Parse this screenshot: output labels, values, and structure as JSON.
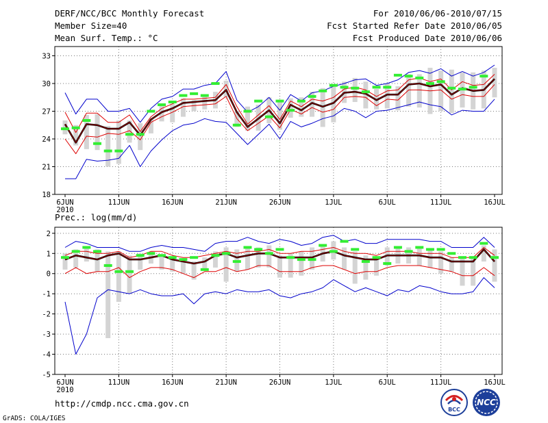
{
  "header": {
    "title": "DERF/NCC/BCC Monthly Forecast",
    "member_size": "Member Size=40",
    "variable": "Mean Surf. Temp.: °C",
    "period": "For 2010/06/06-2010/07/15",
    "started": "Fcst Started Refer Date 2010/06/05",
    "produced": "Fcst Produced Date 2010/06/06"
  },
  "footer": {
    "url": "http://cmdp.ncc.cma.gov.cn",
    "credit": "GrADS: COLA/IGES",
    "logo_bcc": "BCC",
    "logo_ncc": "NCC"
  },
  "colors": {
    "envelope": "#0000cc",
    "spread": "#dd0000",
    "mean": "#000000",
    "mean_inner": "#aa0000",
    "box": "#d4d4d4",
    "obs": "#33ee33"
  },
  "chart_data": [
    {
      "type": "line",
      "title": "Mean Surf. Temp.: °C",
      "ylim": [
        18,
        34
      ],
      "yticks": [
        18,
        21,
        24,
        27,
        30,
        33
      ],
      "xlim": [
        0,
        40
      ],
      "xticks": [
        {
          "x": 0,
          "label": "6JUN",
          "label2": "2010"
        },
        {
          "x": 5,
          "label": "11JUN"
        },
        {
          "x": 10,
          "label": "16JUN"
        },
        {
          "x": 15,
          "label": "21JUN"
        },
        {
          "x": 20,
          "label": "26JUN"
        },
        {
          "x": 25,
          "label": "1JUL"
        },
        {
          "x": 30,
          "label": "6JUL"
        },
        {
          "x": 35,
          "label": "11JUL"
        },
        {
          "x": 40,
          "label": "16JUL"
        }
      ],
      "grid": true,
      "series": [
        {
          "name": "max",
          "values": [
            29.0,
            26.7,
            28.3,
            28.3,
            27.0,
            27.0,
            27.3,
            25.8,
            27.3,
            28.3,
            28.6,
            29.4,
            29.4,
            29.8,
            30.0,
            31.3,
            28.2,
            26.9,
            27.5,
            28.5,
            27.1,
            28.8,
            28.1,
            29.0,
            29.2,
            29.7,
            30.0,
            30.4,
            30.5,
            29.8,
            30.0,
            30.4,
            31.2,
            31.4,
            31.1,
            31.6,
            30.8,
            31.3,
            30.8,
            31.2,
            32.0
          ]
        },
        {
          "name": "min",
          "values": [
            19.7,
            19.7,
            21.8,
            21.6,
            21.7,
            21.9,
            23.3,
            21.0,
            22.7,
            23.9,
            24.9,
            25.5,
            25.7,
            26.2,
            25.9,
            25.8,
            24.6,
            23.4,
            24.5,
            25.6,
            24.0,
            25.9,
            25.3,
            25.7,
            26.2,
            26.5,
            27.3,
            27.0,
            26.3,
            27.0,
            27.1,
            27.4,
            27.7,
            28.0,
            27.7,
            27.5,
            26.6,
            27.1,
            27.0,
            27.0,
            28.3
          ]
        },
        {
          "name": "upper",
          "values": [
            26.9,
            24.7,
            26.8,
            26.8,
            25.8,
            25.8,
            26.6,
            24.8,
            26.4,
            27.3,
            27.8,
            28.3,
            28.3,
            28.4,
            28.5,
            29.9,
            27.5,
            25.6,
            26.6,
            27.6,
            26.1,
            28.1,
            27.5,
            28.3,
            28.1,
            28.5,
            29.4,
            29.6,
            29.3,
            28.6,
            29.2,
            29.3,
            30.4,
            30.6,
            30.2,
            30.5,
            29.3,
            30.2,
            29.8,
            29.9,
            31.0
          ]
        },
        {
          "name": "lower",
          "values": [
            24.0,
            22.4,
            24.3,
            24.2,
            24.6,
            24.5,
            24.9,
            23.9,
            25.8,
            26.4,
            26.9,
            27.5,
            27.6,
            27.7,
            27.8,
            28.6,
            26.2,
            24.9,
            25.7,
            26.5,
            25.2,
            27.2,
            26.7,
            27.4,
            26.9,
            27.2,
            28.5,
            28.6,
            28.5,
            27.6,
            28.3,
            28.2,
            29.3,
            29.3,
            29.2,
            29.3,
            28.3,
            28.8,
            28.6,
            28.6,
            29.9
          ]
        },
        {
          "name": "mean",
          "values": [
            25.6,
            23.6,
            25.6,
            25.5,
            25.1,
            25.1,
            25.8,
            24.4,
            26.1,
            26.9,
            27.3,
            27.9,
            28.0,
            28.1,
            28.2,
            29.3,
            26.9,
            25.3,
            26.2,
            27.1,
            25.7,
            27.7,
            27.1,
            27.9,
            27.5,
            27.9,
            29.0,
            29.1,
            28.9,
            28.2,
            28.8,
            28.8,
            29.9,
            30.0,
            29.7,
            29.9,
            28.8,
            29.5,
            29.2,
            29.3,
            30.5
          ]
        },
        {
          "name": "box_high",
          "values": [
            26.0,
            25.5,
            26.6,
            26.7,
            25.4,
            26.0,
            26.0,
            25.7,
            26.2,
            27.6,
            27.8,
            28.4,
            28.2,
            28.6,
            29.1,
            30.3,
            27.0,
            27.5,
            27.7,
            28.5,
            28.2,
            28.4,
            28.5,
            29.1,
            29.5,
            29.8,
            30.2,
            30.6,
            30.2,
            29.4,
            30.0,
            29.7,
            31.0,
            31.0,
            31.7,
            31.4,
            31.5,
            31.2,
            31.2,
            31.4,
            31.7
          ]
        },
        {
          "name": "box_low",
          "values": [
            24.5,
            23.3,
            22.9,
            22.8,
            21.0,
            21.3,
            23.6,
            22.8,
            24.6,
            25.9,
            25.8,
            26.4,
            27.0,
            27.2,
            27.3,
            28.5,
            25.3,
            24.9,
            24.9,
            25.7,
            25.0,
            26.3,
            26.4,
            26.4,
            25.3,
            25.8,
            27.9,
            28.0,
            27.3,
            27.2,
            27.3,
            27.1,
            27.5,
            27.4,
            26.7,
            27.0,
            26.8,
            27.4,
            27.2,
            27.3,
            28.5
          ]
        },
        {
          "name": "obs",
          "values": [
            25.1,
            25.2,
            26.0,
            23.5,
            22.7,
            22.7,
            24.5,
            24.5,
            27.0,
            27.7,
            28.0,
            28.7,
            28.9,
            28.7,
            30.0,
            null,
            25.5,
            27.0,
            28.1,
            26.4,
            28.1,
            27.1,
            28.1,
            28.6,
            29.2,
            29.8,
            29.6,
            29.5,
            29.1,
            29.6,
            29.6,
            30.9,
            30.8,
            30.6,
            30.0,
            30.2,
            29.5,
            29.4,
            29.6,
            30.8,
            null
          ]
        }
      ]
    },
    {
      "type": "line",
      "title": "Prec.: log(mm/d)",
      "ylim": [
        -5,
        2.3
      ],
      "yticks": [
        -5,
        -4,
        -3,
        -2,
        -1,
        0,
        1,
        2
      ],
      "xlim": [
        0,
        40
      ],
      "xticks": [
        {
          "x": 0,
          "label": "6JUN",
          "label2": "2010"
        },
        {
          "x": 5,
          "label": "11JUN"
        },
        {
          "x": 10,
          "label": "16JUN"
        },
        {
          "x": 15,
          "label": "21JUN"
        },
        {
          "x": 20,
          "label": "26JUN"
        },
        {
          "x": 25,
          "label": "1JUL"
        },
        {
          "x": 30,
          "label": "6JUL"
        },
        {
          "x": 35,
          "label": "11JUL"
        },
        {
          "x": 40,
          "label": "16JUL"
        }
      ],
      "grid": true,
      "series": [
        {
          "name": "max",
          "values": [
            1.3,
            1.6,
            1.5,
            1.3,
            1.3,
            1.3,
            1.1,
            1.1,
            1.3,
            1.4,
            1.3,
            1.3,
            1.2,
            1.1,
            1.5,
            1.6,
            1.6,
            1.8,
            1.6,
            1.5,
            1.7,
            1.6,
            1.4,
            1.5,
            1.8,
            1.9,
            1.6,
            1.7,
            1.5,
            1.5,
            1.7,
            1.7,
            1.7,
            1.7,
            1.6,
            1.6,
            1.3,
            1.3,
            1.3,
            1.8,
            1.3
          ]
        },
        {
          "name": "min",
          "values": [
            -1.4,
            -4.0,
            -3.0,
            -1.2,
            -0.8,
            -0.9,
            -1.0,
            -0.8,
            -1.0,
            -1.1,
            -1.1,
            -1.0,
            -1.5,
            -1.0,
            -0.9,
            -1.0,
            -0.8,
            -0.9,
            -0.9,
            -0.8,
            -1.1,
            -1.2,
            -1.0,
            -0.9,
            -0.7,
            -0.3,
            -0.6,
            -0.9,
            -0.7,
            -0.9,
            -1.1,
            -0.8,
            -0.9,
            -0.6,
            -0.7,
            -0.9,
            -1.0,
            -1.0,
            -0.9,
            -0.2,
            -0.7
          ]
        },
        {
          "name": "upper",
          "values": [
            0.9,
            1.1,
            1.1,
            1.0,
            1.0,
            1.1,
            0.8,
            0.9,
            1.1,
            1.1,
            0.9,
            0.8,
            0.8,
            0.9,
            1.0,
            1.1,
            1.0,
            1.1,
            1.1,
            1.2,
            1.0,
            1.0,
            1.1,
            1.1,
            1.2,
            1.3,
            1.1,
            1.0,
            1.0,
            0.9,
            1.1,
            1.1,
            1.1,
            1.0,
            1.0,
            1.0,
            0.8,
            0.8,
            0.8,
            1.3,
            0.9
          ]
        },
        {
          "name": "lower",
          "values": [
            0.0,
            0.3,
            0.0,
            0.1,
            0.1,
            0.3,
            -0.2,
            0.1,
            0.3,
            0.3,
            0.2,
            0.0,
            -0.2,
            0.1,
            0.1,
            0.3,
            0.1,
            0.2,
            0.4,
            0.4,
            0.1,
            0.1,
            0.1,
            0.3,
            0.4,
            0.4,
            0.2,
            0.0,
            0.1,
            0.1,
            0.3,
            0.4,
            0.4,
            0.4,
            0.3,
            0.2,
            0.1,
            -0.1,
            -0.1,
            0.3,
            -0.1
          ]
        },
        {
          "name": "mean",
          "values": [
            0.7,
            0.9,
            0.8,
            0.7,
            0.9,
            1.0,
            0.7,
            0.7,
            0.8,
            0.9,
            0.7,
            0.6,
            0.5,
            0.6,
            0.9,
            1.0,
            0.8,
            0.9,
            1.0,
            1.0,
            0.8,
            0.8,
            0.8,
            0.8,
            1.0,
            1.1,
            0.9,
            0.8,
            0.7,
            0.7,
            0.9,
            0.9,
            0.9,
            0.9,
            0.8,
            0.8,
            0.6,
            0.6,
            0.6,
            1.2,
            0.6
          ]
        },
        {
          "name": "box_high",
          "values": [
            1.0,
            1.2,
            1.3,
            1.2,
            1.1,
            1.1,
            0.9,
            1.0,
            1.1,
            0.9,
            0.8,
            0.7,
            0.6,
            0.8,
            1.1,
            1.3,
            1.2,
            1.3,
            1.3,
            1.4,
            0.9,
            1.0,
            1.1,
            1.3,
            1.4,
            1.6,
            1.3,
            1.1,
            0.9,
            0.8,
            1.3,
            1.3,
            1.3,
            1.3,
            1.2,
            1.1,
            0.8,
            0.8,
            0.8,
            1.4,
            1.2
          ]
        },
        {
          "name": "box_low",
          "values": [
            0.2,
            0.3,
            0.6,
            0.1,
            -3.2,
            -1.4,
            -1.0,
            0.2,
            0.5,
            0.2,
            0.1,
            0.0,
            -0.3,
            0.2,
            0.3,
            -0.4,
            0.1,
            0.2,
            0.3,
            0.3,
            -0.2,
            -0.2,
            -0.1,
            0.2,
            0.6,
            0.7,
            0.2,
            -0.5,
            -0.3,
            -0.1,
            0.4,
            0.5,
            0.5,
            0.4,
            0.3,
            0.0,
            0.1,
            -0.6,
            -0.6,
            0.6,
            -0.4
          ]
        },
        {
          "name": "obs",
          "values": [
            0.8,
            1.1,
            1.3,
            1.1,
            0.4,
            0.1,
            0.1,
            0.9,
            1.0,
            0.9,
            0.8,
            0.7,
            0.8,
            0.2,
            0.9,
            1.0,
            0.6,
            1.3,
            1.2,
            1.0,
            1.2,
            0.8,
            0.7,
            0.7,
            1.4,
            1.1,
            1.6,
            1.2,
            0.6,
            0.8,
            0.5,
            1.3,
            1.1,
            1.3,
            1.2,
            1.2,
            1.0,
            0.8,
            0.8,
            1.5,
            0.8
          ]
        }
      ]
    }
  ]
}
